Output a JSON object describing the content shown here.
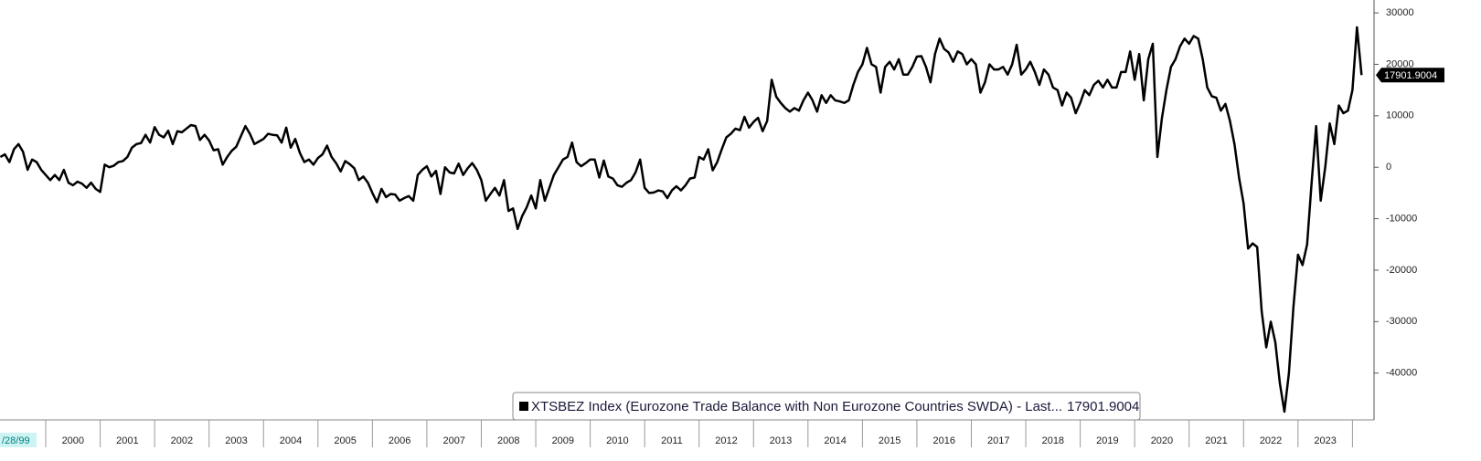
{
  "chart_data": {
    "type": "line",
    "x_start_label": "/28/99",
    "series": [
      {
        "name": "XTSBEZ Index (Eurozone Trade Balance with Non Eurozone Countries SWDA) - Last...",
        "color": "#000000",
        "x": [
          1999.167,
          1999.25,
          1999.333,
          1999.417,
          1999.5,
          1999.583,
          1999.667,
          1999.75,
          1999.833,
          1999.917,
          2000,
          2000.083,
          2000.167,
          2000.25,
          2000.333,
          2000.417,
          2000.5,
          2000.583,
          2000.667,
          2000.75,
          2000.833,
          2000.917,
          2001,
          2001.083,
          2001.167,
          2001.25,
          2001.333,
          2001.417,
          2001.5,
          2001.583,
          2001.667,
          2001.75,
          2001.833,
          2001.917,
          2002,
          2002.083,
          2002.167,
          2002.25,
          2002.333,
          2002.417,
          2002.5,
          2002.583,
          2002.667,
          2002.75,
          2002.833,
          2002.917,
          2003,
          2003.083,
          2003.167,
          2003.25,
          2003.333,
          2003.417,
          2003.5,
          2003.583,
          2003.667,
          2003.75,
          2003.833,
          2003.917,
          2004,
          2004.083,
          2004.167,
          2004.25,
          2004.333,
          2004.417,
          2004.5,
          2004.583,
          2004.667,
          2004.75,
          2004.833,
          2004.917,
          2005,
          2005.083,
          2005.167,
          2005.25,
          2005.333,
          2005.417,
          2005.5,
          2005.583,
          2005.667,
          2005.75,
          2005.833,
          2005.917,
          2006,
          2006.083,
          2006.167,
          2006.25,
          2006.333,
          2006.417,
          2006.5,
          2006.583,
          2006.667,
          2006.75,
          2006.833,
          2006.917,
          2007,
          2007.083,
          2007.167,
          2007.25,
          2007.333,
          2007.417,
          2007.5,
          2007.583,
          2007.667,
          2007.75,
          2007.833,
          2007.917,
          2008,
          2008.083,
          2008.167,
          2008.25,
          2008.333,
          2008.417,
          2008.5,
          2008.583,
          2008.667,
          2008.75,
          2008.833,
          2008.917,
          2009,
          2009.083,
          2009.167,
          2009.25,
          2009.333,
          2009.417,
          2009.5,
          2009.583,
          2009.667,
          2009.75,
          2009.833,
          2009.917,
          2010,
          2010.083,
          2010.167,
          2010.25,
          2010.333,
          2010.417,
          2010.5,
          2010.583,
          2010.667,
          2010.75,
          2010.833,
          2010.917,
          2011,
          2011.083,
          2011.167,
          2011.25,
          2011.333,
          2011.417,
          2011.5,
          2011.583,
          2011.667,
          2011.75,
          2011.833,
          2011.917,
          2012,
          2012.083,
          2012.167,
          2012.25,
          2012.333,
          2012.417,
          2012.5,
          2012.583,
          2012.667,
          2012.75,
          2012.833,
          2012.917,
          2013,
          2013.083,
          2013.167,
          2013.25,
          2013.333,
          2013.417,
          2013.5,
          2013.583,
          2013.667,
          2013.75,
          2013.833,
          2013.917,
          2014,
          2014.083,
          2014.167,
          2014.25,
          2014.333,
          2014.417,
          2014.5,
          2014.583,
          2014.667,
          2014.75,
          2014.833,
          2014.917,
          2015,
          2015.083,
          2015.167,
          2015.25,
          2015.333,
          2015.417,
          2015.5,
          2015.583,
          2015.667,
          2015.75,
          2015.833,
          2015.917,
          2016,
          2016.083,
          2016.167,
          2016.25,
          2016.333,
          2016.417,
          2016.5,
          2016.583,
          2016.667,
          2016.75,
          2016.833,
          2016.917,
          2017,
          2017.083,
          2017.167,
          2017.25,
          2017.333,
          2017.417,
          2017.5,
          2017.583,
          2017.667,
          2017.75,
          2017.833,
          2017.917,
          2018,
          2018.083,
          2018.167,
          2018.25,
          2018.333,
          2018.417,
          2018.5,
          2018.583,
          2018.667,
          2018.75,
          2018.833,
          2018.917,
          2019,
          2019.083,
          2019.167,
          2019.25,
          2019.333,
          2019.417,
          2019.5,
          2019.583,
          2019.667,
          2019.75,
          2019.833,
          2019.917,
          2020,
          2020.083,
          2020.167,
          2020.25,
          2020.333,
          2020.417,
          2020.5,
          2020.583,
          2020.667,
          2020.75,
          2020.833,
          2020.917,
          2021,
          2021.083,
          2021.167,
          2021.25,
          2021.333,
          2021.417,
          2021.5,
          2021.583,
          2021.667,
          2021.75,
          2021.833,
          2021.917,
          2022,
          2022.083,
          2022.167,
          2022.25,
          2022.333,
          2022.417,
          2022.5,
          2022.583,
          2022.667,
          2022.75,
          2022.833,
          2022.917,
          2023,
          2023.083,
          2023.167,
          2023.25,
          2023.333,
          2023.417,
          2023.5,
          2023.583,
          2023.667,
          2023.75,
          2023.833,
          2023.917,
          2024,
          2024.083,
          2024.167
        ],
        "values": [
          2000,
          2500,
          1000,
          3500,
          4500,
          3000,
          -500,
          1500,
          1000,
          -500,
          -1500,
          -2500,
          -1500,
          -2500,
          -500,
          -3000,
          -3500,
          -2800,
          -3200,
          -4000,
          -3000,
          -4200,
          -4800,
          500,
          0,
          300,
          1000,
          1200,
          2000,
          3800,
          4500,
          4700,
          6300,
          4800,
          7800,
          6300,
          5800,
          7100,
          4500,
          7000,
          6800,
          7500,
          8200,
          8000,
          5300,
          6300,
          5200,
          3300,
          3500,
          500,
          2000,
          3200,
          4000,
          6000,
          8000,
          6500,
          4500,
          5000,
          5500,
          6500,
          6300,
          6200,
          4800,
          7700,
          3800,
          5500,
          2800,
          1000,
          1500,
          500,
          1800,
          2500,
          4200,
          2000,
          800,
          -800,
          1200,
          600,
          -200,
          -2500,
          -1800,
          -3000,
          -5000,
          -6800,
          -4200,
          -5800,
          -5200,
          -5300,
          -6500,
          -6000,
          -5600,
          -6500,
          -1500,
          -500,
          200,
          -1800,
          -700,
          -5200,
          0,
          -1000,
          -1200,
          700,
          -1500,
          -200,
          800,
          -500,
          -2500,
          -6500,
          -5200,
          -4000,
          -5500,
          -2500,
          -8500,
          -8000,
          -12000,
          -9500,
          -7800,
          -5500,
          -8000,
          -2500,
          -6500,
          -4000,
          -1500,
          0,
          1500,
          2000,
          4800,
          1000,
          200,
          800,
          1500,
          1500,
          -2000,
          1300,
          -1800,
          -2200,
          -3500,
          -3800,
          -3000,
          -2500,
          -1000,
          1500,
          -4000,
          -5000,
          -4900,
          -4500,
          -4700,
          -6000,
          -4500,
          -3700,
          -4500,
          -3500,
          -2200,
          -2000,
          2000,
          1500,
          3500,
          -600,
          1000,
          3500,
          5800,
          6500,
          7500,
          7200,
          9800,
          7700,
          8800,
          9600,
          7000,
          9000,
          17000,
          13700,
          12500,
          11500,
          10800,
          11500,
          11000,
          13000,
          14500,
          13000,
          10800,
          14000,
          12500,
          14000,
          13000,
          12800,
          12500,
          13000,
          16000,
          18500,
          20000,
          23200,
          20000,
          19500,
          14500,
          19500,
          20500,
          19000,
          21000,
          18000,
          18000,
          19500,
          21500,
          21600,
          19500,
          16500,
          22000,
          25000,
          23000,
          22300,
          20500,
          22500,
          22000,
          20000,
          21000,
          20000,
          14500,
          16500,
          20000,
          19000,
          19000,
          19500,
          18000,
          20000,
          23800,
          18000,
          19000,
          20500,
          18500,
          16000,
          19000,
          18000,
          15500,
          15000,
          12000,
          14500,
          13500,
          10500,
          12500,
          15000,
          14000,
          16000,
          16800,
          15500,
          17000,
          15500,
          15500,
          18500,
          18500,
          22500,
          17000,
          22000,
          13000,
          21000,
          24000,
          2000,
          9500,
          15000,
          19500,
          21000,
          23500,
          25000,
          24000,
          25500,
          25000,
          21000,
          15500,
          13800,
          13500,
          11000,
          12300,
          9000,
          4500,
          -2000,
          -7000,
          -15800,
          -14800,
          -15500,
          -28000,
          -35000,
          -30000,
          -34000,
          -42000,
          -47500,
          -40000,
          -27000,
          -17000,
          -19000,
          -15000,
          -3000,
          8000,
          -6500,
          0,
          8500,
          4500,
          12000,
          10500,
          11000,
          15000,
          27200,
          17901.9004
        ]
      }
    ],
    "xlim": [
      1999.16,
      2024.43
    ],
    "xticks": [
      2000,
      2001,
      2002,
      2003,
      2004,
      2005,
      2006,
      2007,
      2008,
      2009,
      2010,
      2011,
      2012,
      2013,
      2014,
      2015,
      2016,
      2017,
      2018,
      2019,
      2020,
      2021,
      2022,
      2023
    ],
    "ylim": [
      -49100,
      32500
    ],
    "yticks": [
      30000,
      20000,
      10000,
      0,
      -10000,
      -20000,
      -30000,
      -40000
    ],
    "legend": "bottom"
  }
}
